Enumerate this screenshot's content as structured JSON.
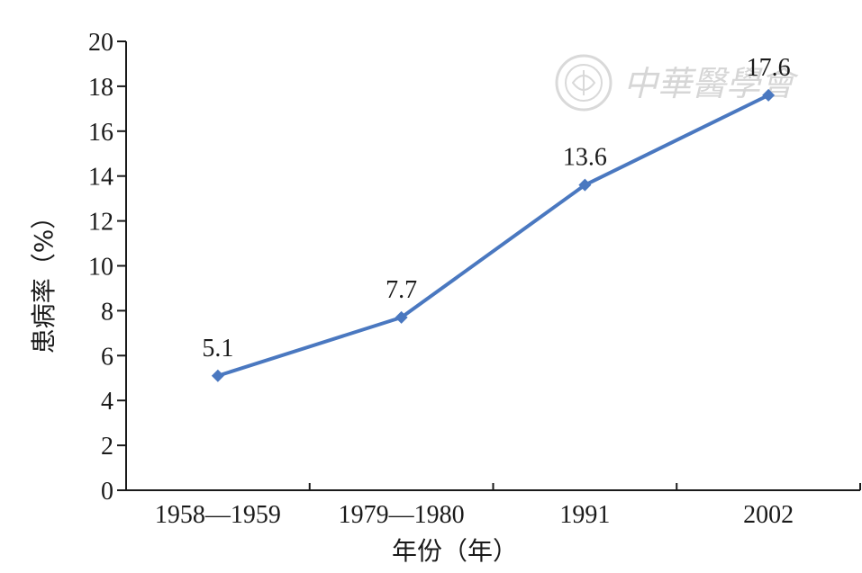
{
  "chart_data": {
    "type": "line",
    "title": "",
    "xlabel": "年份（年）",
    "ylabel": "患病率（%）",
    "categories": [
      "1958—1959",
      "1979—1980",
      "1991",
      "2002"
    ],
    "series": [
      {
        "values": [
          5.1,
          7.7,
          13.6,
          17.6
        ],
        "color": "#4a78c0",
        "marker": "diamond"
      }
    ],
    "data_labels": [
      "5.1",
      "7.7",
      "13.6",
      "17.6"
    ],
    "ylim": [
      0,
      20
    ],
    "yticks": [
      0,
      2,
      4,
      6,
      8,
      10,
      12,
      14,
      16,
      18,
      20
    ],
    "grid": false,
    "legend": "none"
  },
  "watermark": {
    "text": "中華醫學會"
  },
  "colors": {
    "axis": "#1a1a1a",
    "line": "#4a78c0",
    "watermark": "#d6d6d6"
  }
}
